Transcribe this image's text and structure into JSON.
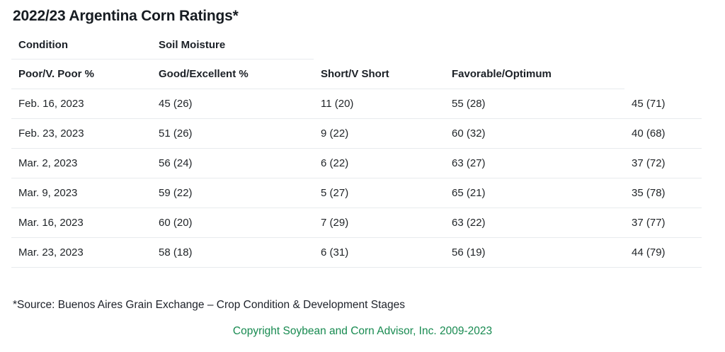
{
  "colors": {
    "accent_green": "#178a50",
    "divider": "#e8ebee"
  },
  "chart_data": {
    "type": "table",
    "title": "2022/23 Argentina Corn Ratings*",
    "header_row_1": [
      "Condition",
      "Soil Moisture",
      "",
      "",
      ""
    ],
    "header_row_2": [
      "Poor/V. Poor %",
      "Good/Excellent %",
      "Short/V Short",
      "Favorable/Optimum",
      ""
    ],
    "rows": [
      [
        "Feb. 16, 2023",
        "45 (26)",
        "11 (20)",
        "55 (28)",
        "45 (71)"
      ],
      [
        "Feb. 23, 2023",
        "51 (26)",
        "9 (22)",
        "60 (32)",
        "40 (68)"
      ],
      [
        "Mar. 2, 2023",
        "56 (24)",
        "6 (22)",
        "63 (27)",
        "37 (72)"
      ],
      [
        "Mar. 9, 2023",
        "59 (22)",
        "5 (27)",
        "65 (21)",
        "35 (78)"
      ],
      [
        "Mar. 16, 2023",
        "60 (20)",
        "7 (29)",
        "63 (22)",
        "37 (77)"
      ],
      [
        "Mar. 23, 2023",
        "58 (18)",
        "6 (31)",
        "56 (19)",
        "44 (79)"
      ]
    ]
  },
  "footer": {
    "source_note": "*Source: Buenos Aires Grain Exchange – Crop Condition & Development Stages",
    "copyright": "Copyright Soybean and Corn Advisor, Inc. 2009-2023"
  }
}
